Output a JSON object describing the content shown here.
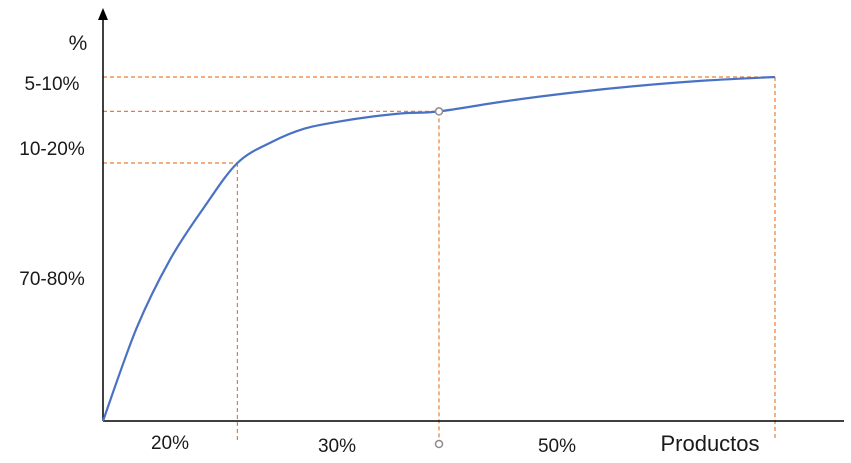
{
  "chart_data": {
    "type": "line",
    "title": "",
    "ylabel": "%",
    "xlabel": "Productos",
    "x_segment_labels": [
      "20%",
      "30%",
      "50%"
    ],
    "y_segment_labels": [
      "5-10%",
      "10-20%",
      "70-80%"
    ],
    "x_boundaries": [
      0,
      20,
      50,
      100
    ],
    "y_boundaries": [
      0,
      75,
      90,
      100
    ],
    "xlim": [
      0,
      100
    ],
    "ylim": [
      0,
      100
    ],
    "grid": false,
    "series": [
      {
        "x": [
          0,
          5,
          10,
          15,
          20,
          25,
          30,
          35,
          40,
          45,
          50,
          60,
          70,
          80,
          90,
          100
        ],
        "y": [
          0,
          27,
          47,
          62,
          75,
          81,
          85,
          87,
          88.5,
          89.5,
          90,
          93,
          95.5,
          97.5,
          99,
          100
        ]
      }
    ],
    "markers": [
      {
        "x": 50,
        "y": 90
      }
    ],
    "colors": {
      "curve": "#4a72c4",
      "guide": "#ed7d31",
      "axis": "#000000",
      "marker": "#8c8c8c"
    }
  }
}
